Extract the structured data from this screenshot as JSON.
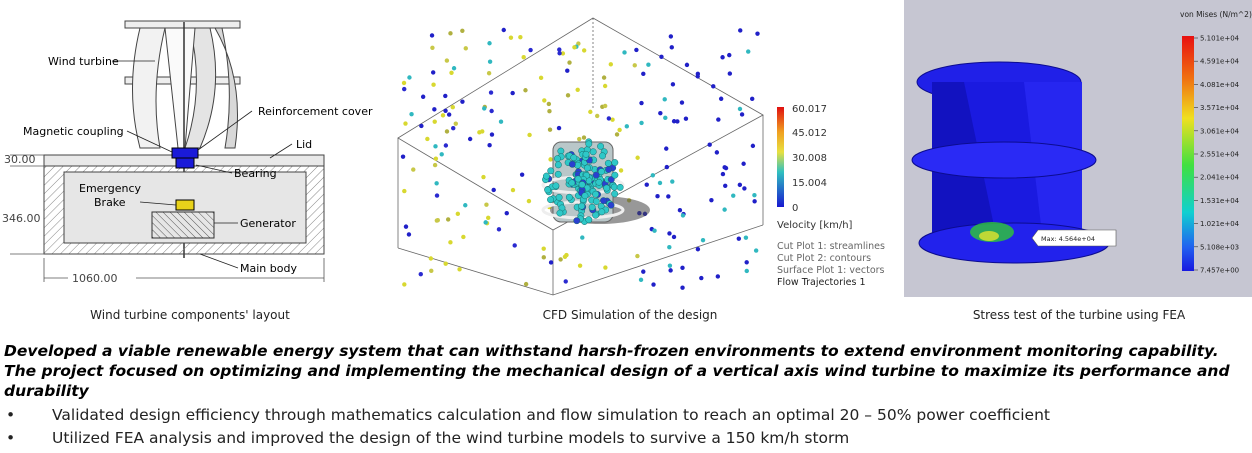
{
  "panel1": {
    "labels": {
      "wind_turbine": "Wind turbine",
      "reinforcement_cover": "Reinforcement cover",
      "magnetic_coupling": "Magnetic coupling",
      "lid": "Lid",
      "bearing": "Bearing",
      "emergency": "Emergency",
      "brake": "Brake",
      "generator": "Generator",
      "main_body": "Main body"
    },
    "dimensions": {
      "lid_height": "30.00",
      "body_height": "346.00",
      "width": "1060.00"
    },
    "caption": "Wind turbine components' layout"
  },
  "panel2": {
    "legend_ticks": [
      "60.017",
      "45.012",
      "30.008",
      "15.004",
      "0"
    ],
    "legend_unit": "Velocity [km/h]",
    "plot_list": [
      "Cut Plot 1: streamlines",
      "Cut Plot 2: contours",
      "Surface Plot 1: vectors",
      "Flow Trajectories 1"
    ],
    "caption": "CFD Simulation of the design"
  },
  "panel3": {
    "legend_title": "von Mises (N/m^2)",
    "legend_ticks": [
      "5.101e+04",
      "4.591e+04",
      "4.081e+04",
      "3.571e+04",
      "3.061e+04",
      "2.551e+04",
      "2.041e+04",
      "1.531e+04",
      "1.021e+04",
      "5.108e+03",
      "7.457e+00"
    ],
    "max_label": "Max: 4.564e+04",
    "caption": "Stress test of the turbine using FEA"
  },
  "headline": "Developed a viable renewable energy system that can withstand harsh-frozen environments to extend environment monitoring capability. The project focused on optimizing and implementing the mechanical design of a vertical axis wind turbine to maximize its performance and durability",
  "bullets": [
    "Validated design efficiency through mathematics calculation and flow simulation to reach an optimal 20 – 50% power coefficient",
    "Utilized FEA analysis and improved the design of the wind turbine models to survive a 150 km/h storm"
  ],
  "colors": {
    "fea_background": "#c4c4d0",
    "fea_body": "#1a1ae0",
    "bullet_symbol": "•"
  }
}
